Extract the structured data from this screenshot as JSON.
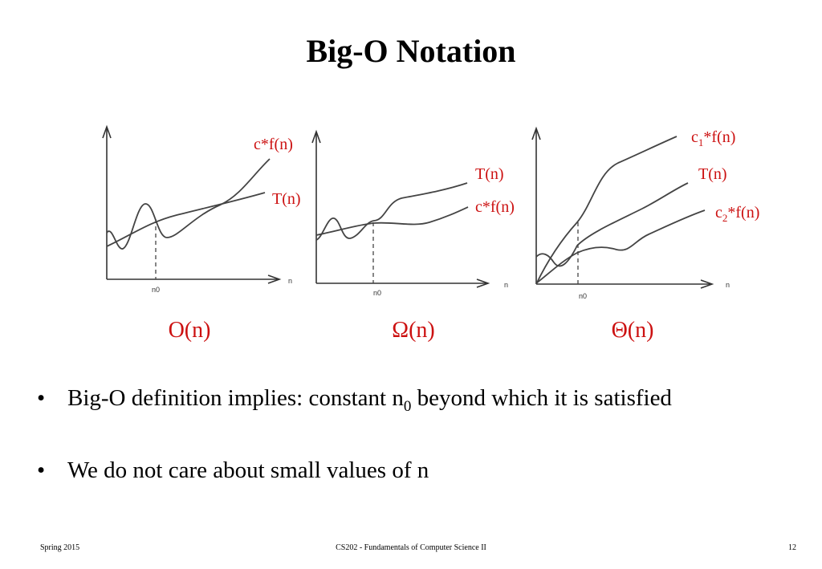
{
  "slide": {
    "title": "Big-O Notation",
    "diagrams": [
      {
        "id": "big-o",
        "caption": "O(n)",
        "axis_label": "n",
        "threshold_label": "n0",
        "curve_labels": {
          "upper": "c*f(n)",
          "lower": "T(n)"
        }
      },
      {
        "id": "omega",
        "caption": "Ω(n)",
        "axis_label": "n",
        "threshold_label": "n0",
        "curve_labels": {
          "upper": "T(n)",
          "lower": "c*f(n)"
        }
      },
      {
        "id": "theta",
        "caption": "Θ(n)",
        "axis_label": "n",
        "threshold_label": "n0",
        "curve_labels": {
          "upper": {
            "prefix": "c",
            "sub": "1",
            "suffix": "*f(n)"
          },
          "middle": "T(n)",
          "lower": {
            "prefix": "c",
            "sub": "2",
            "suffix": "*f(n)"
          }
        }
      }
    ],
    "bullets": [
      {
        "marker": "•",
        "before": "Big-O definition implies: constant n",
        "sub": "0",
        "after": " beyond which it is satisfied"
      },
      {
        "marker": "•",
        "text": "We do not care about small values of n"
      }
    ],
    "footer": {
      "left": "Spring 2015",
      "center": "CS202 - Fundamentals of Computer Science II",
      "right": "12"
    },
    "colors": {
      "label": "#cc1111",
      "curve": "#444444",
      "text": "#000000"
    }
  }
}
